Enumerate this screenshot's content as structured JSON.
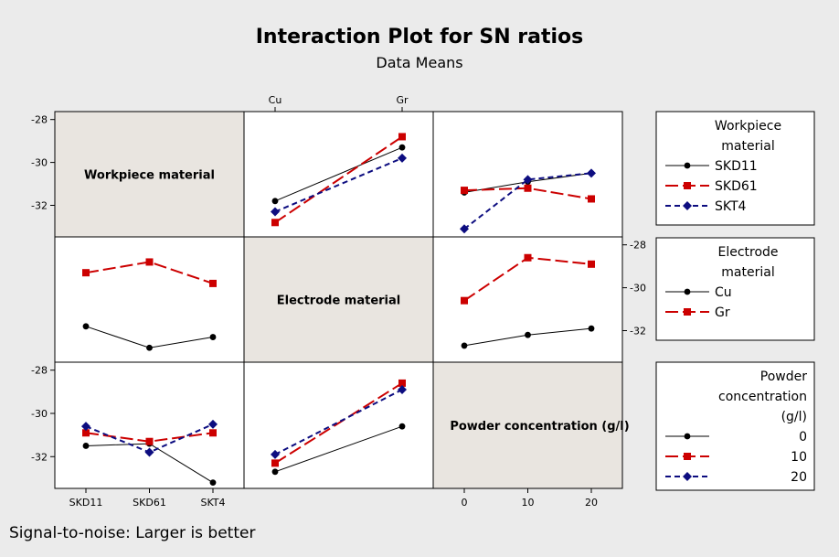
{
  "header": {
    "title": "Interaction Plot for SN ratios",
    "subtitle": "Data Means"
  },
  "footer": "Signal-to-noise: Larger is better",
  "colors": {
    "series0": "#000000",
    "series1": "#cc0000",
    "series2": "#0d0d80",
    "diag_bg": "#e9e5e0",
    "plot_bg": "#ffffff",
    "page_bg": "#ebebeb"
  },
  "chart_data": {
    "type": "interaction_matrix",
    "title": "Interaction Plot for SN ratios",
    "subtitle": "Data Means",
    "y_range": [
      -33.3,
      -27.8
    ],
    "y_ticks": [
      -28,
      -30,
      -32
    ],
    "y_tick_labels": [
      "-28",
      "-30",
      "-32"
    ],
    "factors": [
      {
        "name": "Workpiece material",
        "levels": [
          "SKD11",
          "SKD61",
          "SKT4"
        ],
        "x_ticks": [],
        "x_tick_labels": []
      },
      {
        "name": "Electrode material",
        "levels": [
          "Cu",
          "Gr"
        ],
        "x_ticks": [
          0,
          1
        ],
        "x_tick_labels": [
          "Cu",
          "Gr"
        ]
      },
      {
        "name": "Powder concentration (g/l)",
        "levels": [
          "0",
          "10",
          "20"
        ],
        "x_ticks": [
          0,
          10,
          20
        ],
        "x_tick_labels": [
          "0",
          "10",
          "20"
        ]
      }
    ],
    "panels": [
      {
        "row": 0,
        "col": 1,
        "trace": "Workpiece material",
        "x_factor": "Electrode material",
        "x": [
          0,
          1
        ],
        "series": [
          {
            "name": "SKD11",
            "values": [
              -31.8,
              -29.3
            ]
          },
          {
            "name": "SKD61",
            "values": [
              -32.8,
              -28.8
            ]
          },
          {
            "name": "SKT4",
            "values": [
              -32.3,
              -29.8
            ]
          }
        ]
      },
      {
        "row": 0,
        "col": 2,
        "trace": "Workpiece material",
        "x_factor": "Powder concentration (g/l)",
        "x": [
          0,
          10,
          20
        ],
        "series": [
          {
            "name": "SKD11",
            "values": [
              -31.4,
              -30.9,
              -30.5
            ]
          },
          {
            "name": "SKD61",
            "values": [
              -31.3,
              -31.2,
              -31.7
            ]
          },
          {
            "name": "SKT4",
            "values": [
              -33.1,
              -30.8,
              -30.5
            ]
          }
        ]
      },
      {
        "row": 1,
        "col": 0,
        "trace": "Electrode material",
        "x_factor": "Workpiece material",
        "x": [
          0,
          1,
          2
        ],
        "series": [
          {
            "name": "Cu",
            "values": [
              -31.8,
              -32.8,
              -32.3
            ]
          },
          {
            "name": "Gr",
            "values": [
              -29.3,
              -28.8,
              -29.8
            ]
          }
        ]
      },
      {
        "row": 1,
        "col": 2,
        "trace": "Electrode material",
        "x_factor": "Powder concentration (g/l)",
        "x": [
          0,
          10,
          20
        ],
        "series": [
          {
            "name": "Cu",
            "values": [
              -32.7,
              -32.2,
              -31.9
            ]
          },
          {
            "name": "Gr",
            "values": [
              -30.6,
              -28.6,
              -28.9
            ]
          }
        ]
      },
      {
        "row": 2,
        "col": 0,
        "trace": "Powder concentration (g/l)",
        "x_factor": "Workpiece material",
        "x": [
          0,
          1,
          2
        ],
        "series": [
          {
            "name": "0",
            "values": [
              -31.5,
              -31.4,
              -33.2
            ]
          },
          {
            "name": "10",
            "values": [
              -30.9,
              -31.3,
              -30.9
            ]
          },
          {
            "name": "20",
            "values": [
              -30.6,
              -31.8,
              -30.5
            ]
          }
        ]
      },
      {
        "row": 2,
        "col": 1,
        "trace": "Powder concentration (g/l)",
        "x_factor": "Electrode material",
        "x": [
          0,
          1
        ],
        "series": [
          {
            "name": "0",
            "values": [
              -32.7,
              -30.6
            ]
          },
          {
            "name": "10",
            "values": [
              -32.3,
              -28.6
            ]
          },
          {
            "name": "20",
            "values": [
              -31.9,
              -28.9
            ]
          }
        ]
      }
    ],
    "legends": [
      {
        "title": [
          "Workpiece",
          "material"
        ],
        "align": "center",
        "entries": [
          "SKD11",
          "SKD61",
          "SKT4"
        ]
      },
      {
        "title": [
          "Electrode",
          "material"
        ],
        "align": "center",
        "entries": [
          "Cu",
          "Gr"
        ]
      },
      {
        "title": [
          "Powder",
          "concentration",
          "(g/l)"
        ],
        "align": "right",
        "entries": [
          "0",
          "10",
          "20"
        ]
      }
    ],
    "series_styles": [
      {
        "color": "#000000",
        "dash": "none",
        "marker": "circle"
      },
      {
        "color": "#cc0000",
        "dash": "14,5",
        "marker": "square"
      },
      {
        "color": "#0d0d80",
        "dash": "6,4",
        "marker": "diamond"
      }
    ]
  }
}
